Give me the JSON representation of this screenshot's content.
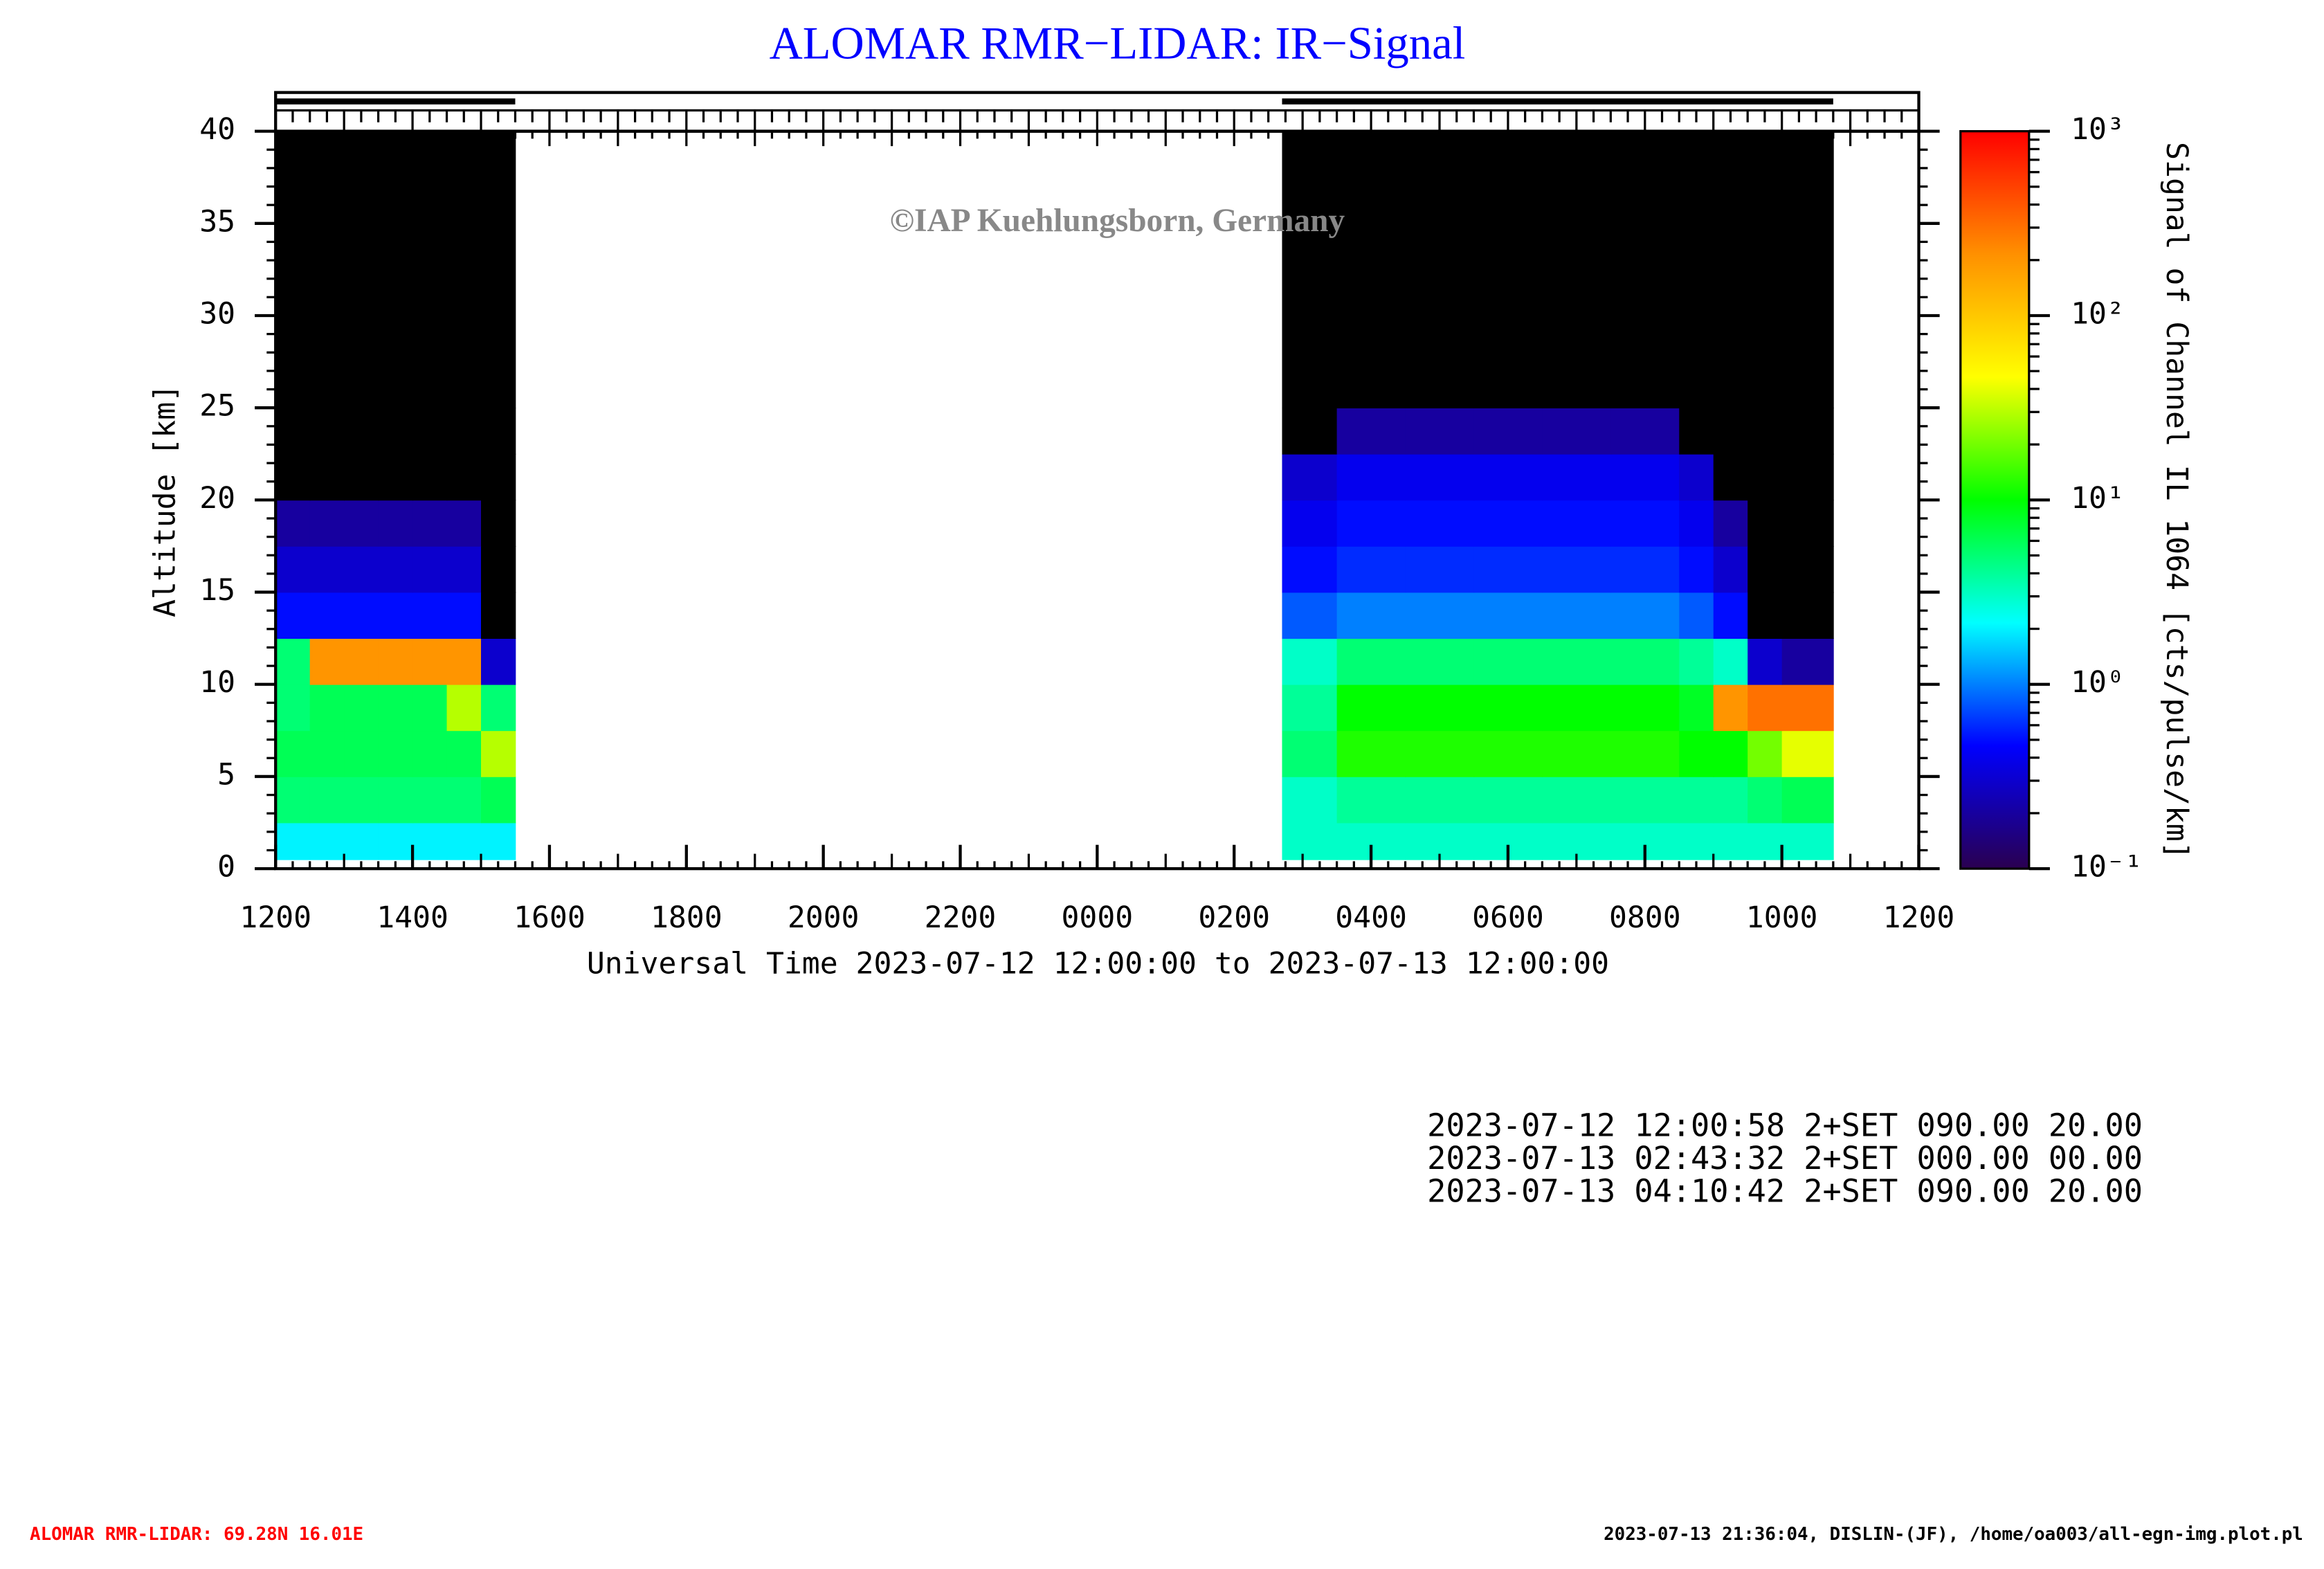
{
  "chart_data": {
    "type": "heatmap",
    "title": "ALOMAR RMR−LIDAR: IR−Signal",
    "watermark": "©IAP Kuehlungsborn, Germany",
    "xlabel": "Universal Time 2023-07-12 12:00:00 to 2023-07-13 12:00:00",
    "ylabel": "Altitude [km]",
    "colorbar_label": "Signal of Channel IL 1064 [cts/pulse/km]",
    "xlim": [
      0,
      24
    ],
    "xticks": [
      {
        "value": 0,
        "label": "1200"
      },
      {
        "value": 2,
        "label": "1400"
      },
      {
        "value": 4,
        "label": "1600"
      },
      {
        "value": 6,
        "label": "1800"
      },
      {
        "value": 8,
        "label": "2000"
      },
      {
        "value": 10,
        "label": "2200"
      },
      {
        "value": 12,
        "label": "0000"
      },
      {
        "value": 14,
        "label": "0200"
      },
      {
        "value": 16,
        "label": "0400"
      },
      {
        "value": 18,
        "label": "0600"
      },
      {
        "value": 20,
        "label": "0800"
      },
      {
        "value": 22,
        "label": "1000"
      },
      {
        "value": 24,
        "label": "1200"
      }
    ],
    "ylim": [
      0,
      40
    ],
    "yticks": [
      0,
      5,
      10,
      15,
      20,
      25,
      30,
      35,
      40
    ],
    "clim": [
      0.1,
      1000
    ],
    "cticks": [
      {
        "value": 0.1,
        "label": "10⁻¹"
      },
      {
        "value": 1,
        "label": "10⁰"
      },
      {
        "value": 10,
        "label": "10¹"
      },
      {
        "value": 100,
        "label": "10²"
      },
      {
        "value": 1000,
        "label": "10³"
      }
    ],
    "log_color": true,
    "colormap": [
      "#2a0050",
      "#0000ff",
      "#00ffff",
      "#00ff00",
      "#ffff00",
      "#ff9000",
      "#ff0000"
    ],
    "below_color": "#000000",
    "operation_periods": [
      [
        0,
        3.5
      ],
      [
        14.7,
        22.75
      ]
    ],
    "x_edges": [
      0,
      0.5,
      1,
      1.5,
      2,
      2.5,
      3,
      3.5,
      14.7,
      15.5,
      16.5,
      17.5,
      18.5,
      19.5,
      20.5,
      21,
      21.5,
      22,
      22.75
    ],
    "y_edges": [
      0.5,
      2.5,
      5,
      7.5,
      10,
      12.5,
      15,
      17.5,
      20,
      22.5,
      25,
      40
    ],
    "z": [
      [
        2,
        2,
        2,
        2,
        2,
        2,
        2,
        null,
        3,
        3,
        3,
        3,
        3,
        3,
        3,
        3,
        3,
        3
      ],
      [
        5,
        5,
        5,
        5,
        5,
        5,
        6,
        null,
        3,
        4,
        4,
        4,
        4,
        4,
        4,
        4,
        5,
        6
      ],
      [
        6,
        6,
        6,
        6,
        6,
        6,
        30,
        null,
        5,
        12,
        12,
        12,
        12,
        12,
        10,
        10,
        20,
        40
      ],
      [
        5,
        6,
        6,
        6,
        6,
        30,
        5,
        null,
        4,
        10,
        10,
        10,
        10,
        10,
        8,
        200,
        300,
        300
      ],
      [
        5,
        200,
        200,
        200,
        200,
        200,
        0.3,
        null,
        3,
        5,
        5,
        5,
        5,
        5,
        4,
        3,
        0.3,
        0.2
      ],
      [
        0.5,
        0.5,
        0.5,
        0.5,
        0.5,
        0.5,
        0.05,
        null,
        0.8,
        1,
        1,
        1,
        1,
        1,
        0.8,
        0.5,
        0.05,
        0.05
      ],
      [
        0.3,
        0.3,
        0.3,
        0.3,
        0.3,
        0.3,
        0.05,
        null,
        0.5,
        0.6,
        0.6,
        0.6,
        0.6,
        0.6,
        0.5,
        0.3,
        0.05,
        0.05
      ],
      [
        0.2,
        0.2,
        0.2,
        0.2,
        0.2,
        0.2,
        0.05,
        null,
        0.4,
        0.5,
        0.5,
        0.5,
        0.5,
        0.5,
        0.4,
        0.2,
        0.05,
        0.05
      ],
      [
        0.05,
        0.05,
        0.05,
        0.05,
        0.05,
        0.05,
        0.05,
        null,
        0.3,
        0.4,
        0.4,
        0.4,
        0.4,
        0.4,
        0.3,
        0.05,
        0.05,
        0.05
      ],
      [
        0.05,
        0.05,
        0.05,
        0.05,
        0.05,
        0.05,
        0.05,
        null,
        0.05,
        0.2,
        0.2,
        0.2,
        0.2,
        0.2,
        0.05,
        0.05,
        0.05,
        0.05
      ],
      [
        0.05,
        0.05,
        0.05,
        0.05,
        0.05,
        0.05,
        0.05,
        null,
        0.05,
        0.05,
        0.05,
        0.05,
        0.05,
        0.05,
        0.05,
        0.05,
        0.05,
        0.05
      ]
    ]
  },
  "info_lines": [
    "2023-07-12 12:00:58 2+SET 090.00 20.00",
    "2023-07-13 02:43:32 2+SET 000.00 00.00",
    "2023-07-13 04:10:42 2+SET 090.00 20.00"
  ],
  "footer": {
    "left": "ALOMAR RMR-LIDAR: 69.28N 16.01E",
    "right": "2023-07-13 21:36:04, DISLIN-(JF), /home/oa003/all-egn-img.plot.pl"
  }
}
